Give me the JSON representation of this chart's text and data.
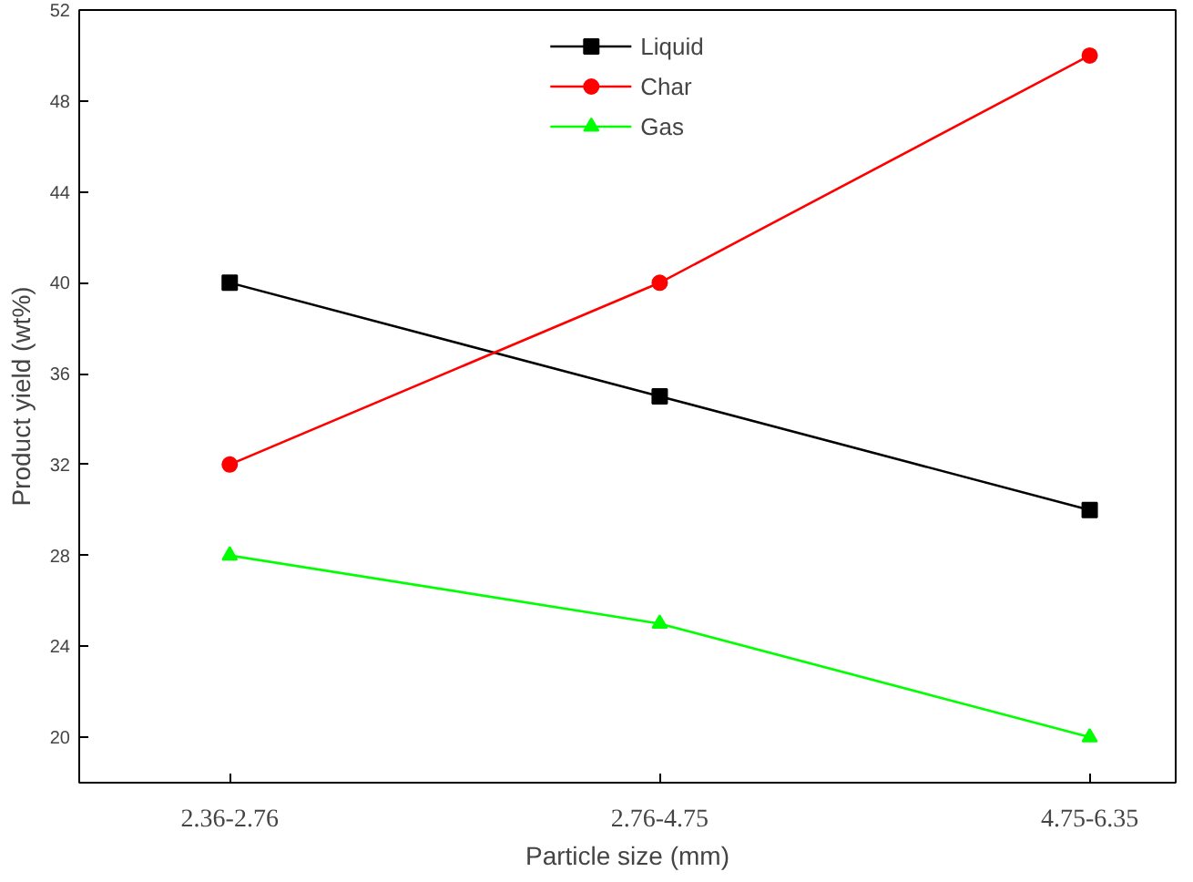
{
  "chart_data": {
    "type": "line",
    "xlabel": "Particle size (mm)",
    "ylabel": "Product yield (wt%)",
    "categories": [
      "2.36-2.76",
      "2.76-4.75",
      "4.75-6.35"
    ],
    "series": [
      {
        "name": "Liquid",
        "color": "#000000",
        "values": [
          40,
          35,
          30
        ],
        "marker": "square"
      },
      {
        "name": "Char",
        "color": "#ff0000",
        "values": [
          32,
          40,
          50
        ],
        "marker": "circle"
      },
      {
        "name": "Gas",
        "color": "#00ff00",
        "values": [
          28,
          25,
          20
        ],
        "marker": "triangle"
      }
    ],
    "ylim": [
      18,
      52
    ],
    "yticks": [
      20,
      24,
      28,
      32,
      36,
      40,
      44,
      48,
      52
    ],
    "grid": false,
    "legend": "top"
  }
}
